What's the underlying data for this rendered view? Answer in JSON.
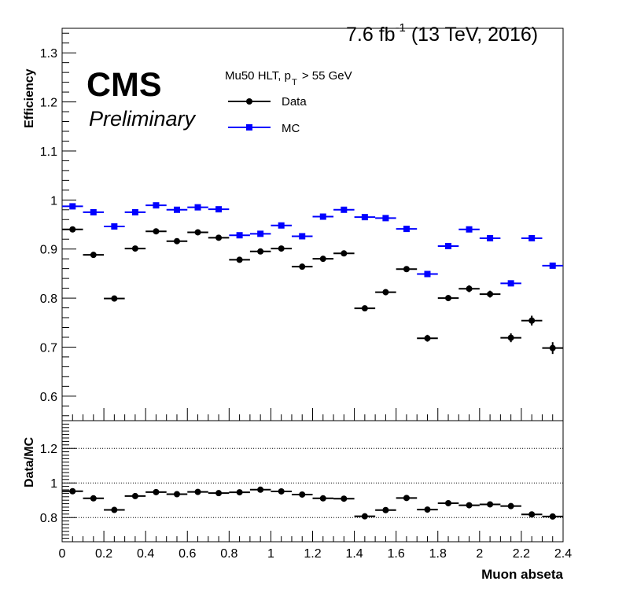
{
  "header": {
    "lumi_main": "7.6 fb",
    "lumi_exp": "-1",
    "lumi_rest": " (13 TeV, 2016)"
  },
  "label": {
    "cms": "CMS",
    "preliminary": "Preliminary"
  },
  "legend": {
    "title_pre": "Mu50 HLT, p",
    "title_sub": "T",
    "title_post": " > 55 GeV",
    "placement": "top-center",
    "entries": [
      {
        "name": "Data",
        "color": "#000000",
        "marker": "circle"
      },
      {
        "name": "MC",
        "color": "#0000ff",
        "marker": "square"
      }
    ]
  },
  "chart_data": [
    {
      "type": "scatter",
      "ylabel": "Efficiency",
      "xlim": [
        0,
        2.4
      ],
      "ylim": [
        0.55,
        1.35
      ],
      "yticks": [
        "0.6",
        "0.7",
        "0.8",
        "0.9",
        "1",
        "1.1",
        "1.2",
        "1.3"
      ],
      "x": [
        0.05,
        0.15,
        0.25,
        0.35,
        0.45,
        0.55,
        0.65,
        0.75,
        0.85,
        0.95,
        1.05,
        1.15,
        1.25,
        1.35,
        1.45,
        1.55,
        1.65,
        1.75,
        1.85,
        1.95,
        2.05,
        2.15,
        2.25,
        2.35
      ],
      "xerr": 0.05,
      "series": [
        {
          "name": "Data",
          "color": "#000000",
          "marker": "circle",
          "values": [
            0.94,
            0.888,
            0.799,
            0.901,
            0.936,
            0.916,
            0.934,
            0.923,
            0.878,
            0.895,
            0.901,
            0.864,
            0.88,
            0.891,
            0.779,
            0.812,
            0.859,
            0.718,
            0.8,
            0.819,
            0.808,
            0.719,
            0.754,
            0.698
          ],
          "yerr": [
            0.004,
            0.004,
            0.004,
            0.004,
            0.004,
            0.004,
            0.004,
            0.004,
            0.004,
            0.004,
            0.004,
            0.004,
            0.004,
            0.004,
            0.005,
            0.006,
            0.005,
            0.007,
            0.006,
            0.007,
            0.007,
            0.009,
            0.01,
            0.012
          ]
        },
        {
          "name": "MC",
          "color": "#0000ff",
          "marker": "square",
          "values": [
            0.987,
            0.975,
            0.946,
            0.975,
            0.989,
            0.98,
            0.985,
            0.981,
            0.928,
            0.931,
            0.948,
            0.926,
            0.966,
            0.98,
            0.965,
            0.963,
            0.941,
            0.849,
            0.906,
            0.94,
            0.922,
            0.83,
            0.922,
            0.866
          ],
          "yerr": [
            0.002,
            0.002,
            0.002,
            0.002,
            0.002,
            0.002,
            0.002,
            0.002,
            0.002,
            0.002,
            0.002,
            0.002,
            0.002,
            0.002,
            0.002,
            0.002,
            0.002,
            0.003,
            0.003,
            0.003,
            0.003,
            0.004,
            0.004,
            0.004
          ]
        }
      ]
    },
    {
      "type": "scatter",
      "xlabel": "Muon abseta",
      "ylabel": "Data/MC",
      "xlim": [
        0,
        2.4
      ],
      "ylim": [
        0.66,
        1.36
      ],
      "yticks": [
        "0.8",
        "1",
        "1.2"
      ],
      "xticks": [
        "0",
        "0.2",
        "0.4",
        "0.6",
        "0.8",
        "1",
        "1.2",
        "1.4",
        "1.6",
        "1.8",
        "2",
        "2.2",
        "2.4"
      ],
      "gridlines_y": [
        0.8,
        1.0,
        1.2
      ],
      "x": [
        0.05,
        0.15,
        0.25,
        0.35,
        0.45,
        0.55,
        0.65,
        0.75,
        0.85,
        0.95,
        1.05,
        1.15,
        1.25,
        1.35,
        1.45,
        1.55,
        1.65,
        1.75,
        1.85,
        1.95,
        2.05,
        2.15,
        2.25,
        2.35
      ],
      "xerr": 0.05,
      "series": [
        {
          "color": "#000000",
          "marker": "circle",
          "values": [
            0.952,
            0.911,
            0.844,
            0.924,
            0.947,
            0.935,
            0.948,
            0.941,
            0.946,
            0.961,
            0.951,
            0.933,
            0.911,
            0.909,
            0.807,
            0.843,
            0.913,
            0.846,
            0.883,
            0.871,
            0.876,
            0.866,
            0.818,
            0.806
          ]
        }
      ]
    }
  ]
}
